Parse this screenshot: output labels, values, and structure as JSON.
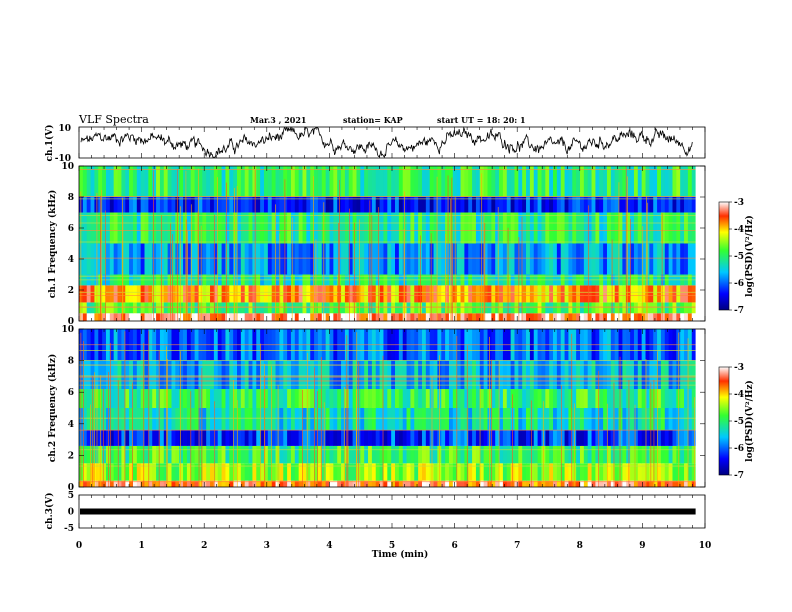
{
  "header": {
    "title": "VLF Spectra",
    "date": "Mar.3 , 2021",
    "station": "station= KAP",
    "start_ut": "start UT = 18: 20: 1"
  },
  "chart_data": [
    {
      "type": "line",
      "panel": "ch1-waveform",
      "ylabel": "ch.1(V)",
      "ylim": [
        -10,
        10
      ],
      "y_ticks": [
        "10",
        "-10"
      ],
      "xlim": [
        0,
        10
      ],
      "note_values": "noisy waveform oscillating roughly between -6 and 6 V"
    },
    {
      "type": "heatmap",
      "panel": "ch1-spectrogram",
      "ylabel": "ch.1 Frequency (kHz)",
      "ylim": [
        0,
        10
      ],
      "y_ticks": [
        "0",
        "2",
        "4",
        "6",
        "8",
        "10"
      ],
      "xlim": [
        0,
        10
      ],
      "colorbar": {
        "label": "log(PSD)(V²/Hz)",
        "range": [
          -7,
          -3
        ],
        "ticks": [
          "-3",
          "-4",
          "-5",
          "-6",
          "-7"
        ]
      },
      "bands": [
        {
          "f_low": 0.0,
          "f_high": 0.5,
          "level": -3.3
        },
        {
          "f_low": 0.5,
          "f_high": 1.2,
          "level": -4.8
        },
        {
          "f_low": 1.2,
          "f_high": 2.3,
          "level": -3.8
        },
        {
          "f_low": 2.3,
          "f_high": 3.0,
          "level": -5.2
        },
        {
          "f_low": 3.0,
          "f_high": 5.0,
          "level": -5.8
        },
        {
          "f_low": 5.0,
          "f_high": 7.0,
          "level": -5.1
        },
        {
          "f_low": 7.0,
          "f_high": 8.0,
          "level": -6.3
        },
        {
          "f_low": 8.0,
          "f_high": 10.0,
          "level": -5.0
        }
      ]
    },
    {
      "type": "heatmap",
      "panel": "ch2-spectrogram",
      "ylabel": "ch.2 Frequency (kHz)",
      "ylim": [
        0,
        10
      ],
      "y_ticks": [
        "0",
        "2",
        "4",
        "6",
        "8",
        "10"
      ],
      "xlim": [
        0,
        10
      ],
      "colorbar": {
        "label": "log(PSD)(V²/Hz)",
        "range": [
          -7,
          -3
        ],
        "ticks": [
          "-3",
          "-4",
          "-5",
          "-6",
          "-7"
        ]
      },
      "bands": [
        {
          "f_low": 0.0,
          "f_high": 0.4,
          "level": -3.5
        },
        {
          "f_low": 0.4,
          "f_high": 1.5,
          "level": -4.5
        },
        {
          "f_low": 1.5,
          "f_high": 2.6,
          "level": -4.9
        },
        {
          "f_low": 2.6,
          "f_high": 3.6,
          "level": -6.2
        },
        {
          "f_low": 3.6,
          "f_high": 5.0,
          "level": -5.3
        },
        {
          "f_low": 5.0,
          "f_high": 6.2,
          "level": -5.0
        },
        {
          "f_low": 6.2,
          "f_high": 8.0,
          "level": -5.6
        },
        {
          "f_low": 8.0,
          "f_high": 10.0,
          "level": -6.0
        }
      ]
    },
    {
      "type": "line",
      "panel": "ch3-waveform",
      "ylabel": "ch.3(V)",
      "ylim": [
        -5,
        5
      ],
      "y_ticks": [
        "5",
        "0",
        "-5"
      ],
      "xlim": [
        0,
        10
      ],
      "xlabel": "Time (min)",
      "x_ticks": [
        "0",
        "1",
        "2",
        "3",
        "4",
        "5",
        "6",
        "7",
        "8",
        "9",
        "10"
      ],
      "constant_value": 0
    }
  ]
}
